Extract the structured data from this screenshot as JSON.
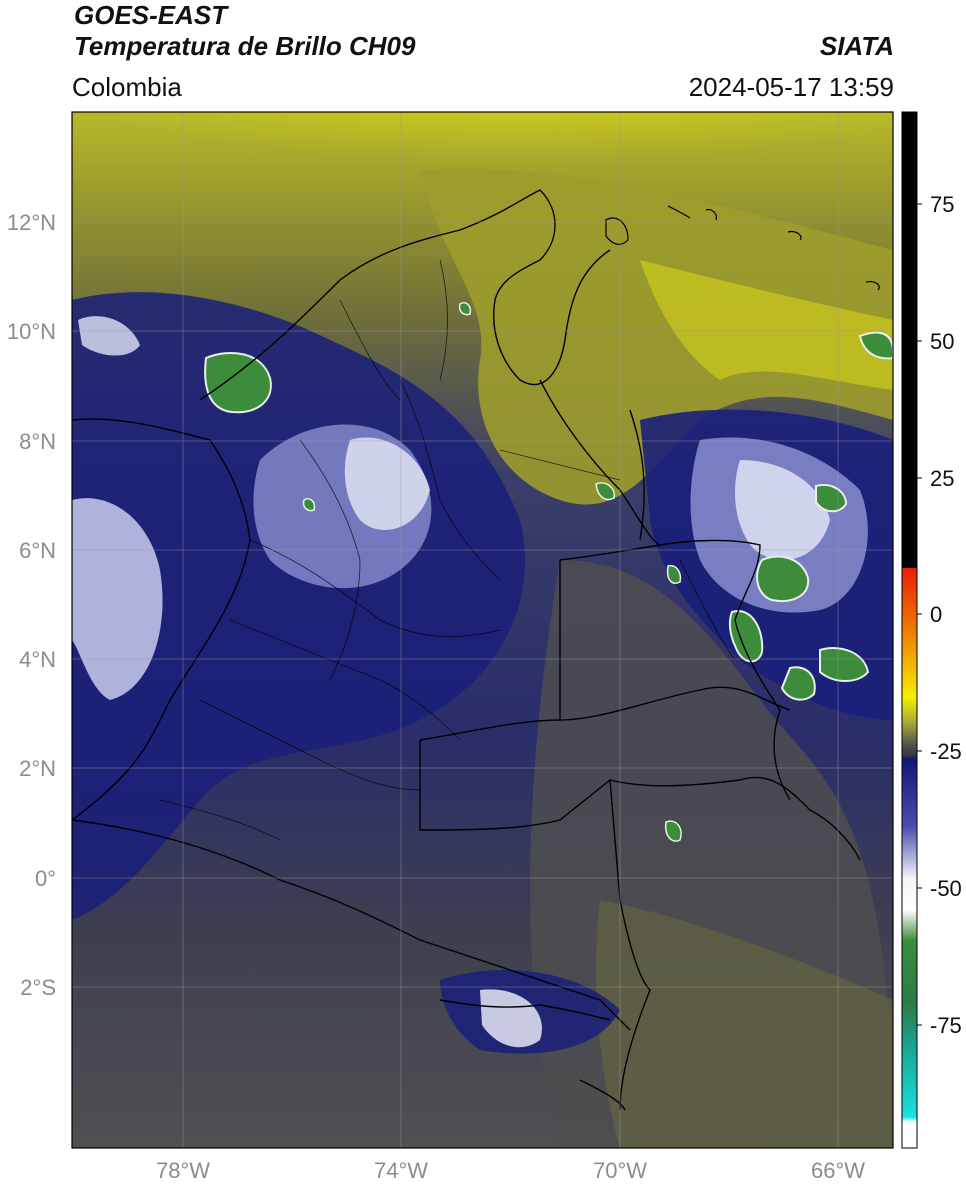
{
  "header": {
    "satellite": "GOES-EAST",
    "product": "Temperatura de Brillo CH09",
    "brand": "SIATA",
    "region": "Colombia",
    "datetime": "2024-05-17 13:59"
  },
  "axes": {
    "lat_ticks": [
      "12°N",
      "10°N",
      "8°N",
      "6°N",
      "4°N",
      "2°N",
      "0°",
      "2°S"
    ],
    "lon_ticks": [
      "78°W",
      "74°W",
      "70°W",
      "66°W"
    ]
  },
  "colorbar": {
    "tick_labels": [
      "75",
      "50",
      "25",
      "0",
      "-25",
      "-50",
      "-75"
    ],
    "colors": {
      "black": "#000000",
      "red": "#e81e0a",
      "orange": "#f39a00",
      "yellow": "#f5ef00",
      "olive": "#8f8f2c",
      "dark_gray": "#3a3a45",
      "navy": "#121675",
      "blue": "#4a4fae",
      "white": "#f4f4fa",
      "green": "#3c8c3c",
      "teal": "#1aa38e",
      "cyan": "#18e2e2"
    }
  },
  "map": {
    "colors": {
      "navy": "#1a1f7a",
      "olive": "#83832e",
      "yellow": "#d9dc1c",
      "gray": "#4b4c52",
      "white": "#e8eaf6",
      "green": "#3c8c3c"
    }
  }
}
